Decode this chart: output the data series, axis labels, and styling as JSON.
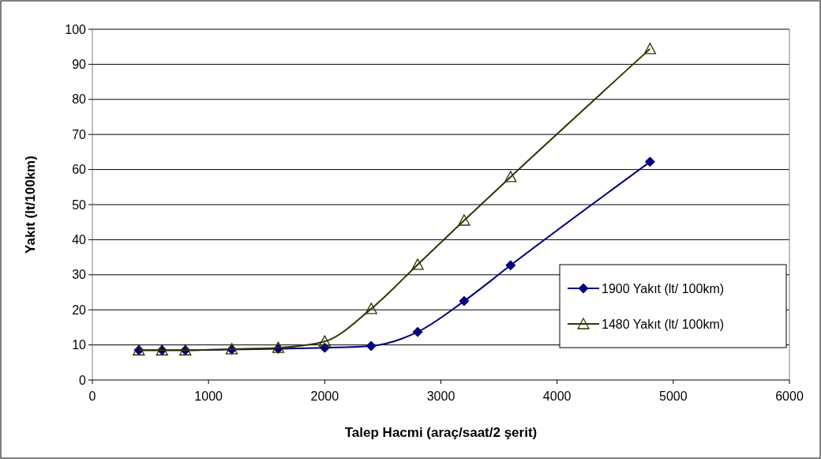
{
  "chart_data": {
    "type": "line",
    "xlabel": "Talep Hacmi (araç/saat/2 şerit)",
    "ylabel": "Yakıt (lt/100km)",
    "x": [
      400,
      600,
      800,
      1200,
      1600,
      2000,
      2400,
      2800,
      3200,
      3600,
      4800
    ],
    "series": [
      {
        "name": "1900 Yakıt (lt/ 100km)",
        "color": "#000080",
        "marker": "diamond",
        "values": [
          8.5,
          8.5,
          8.5,
          8.7,
          8.9,
          9.2,
          9.7,
          13.7,
          22.5,
          32.7,
          62.2
        ]
      },
      {
        "name": "1480 Yakıt (lt/ 100km)",
        "color": "#333300",
        "marker": "triangle",
        "values": [
          8.5,
          8.5,
          8.5,
          8.8,
          9.2,
          11,
          20.3,
          32.9,
          45.5,
          57.9,
          94.4
        ]
      }
    ],
    "xlim": [
      0,
      6000
    ],
    "xticks": [
      0,
      1000,
      2000,
      3000,
      4000,
      5000,
      6000
    ],
    "ylim": [
      0,
      100
    ],
    "yticks": [
      0,
      10,
      20,
      30,
      40,
      50,
      60,
      70,
      80,
      90,
      100
    ],
    "grid": "y",
    "legend": "right",
    "line_style": "solid"
  }
}
